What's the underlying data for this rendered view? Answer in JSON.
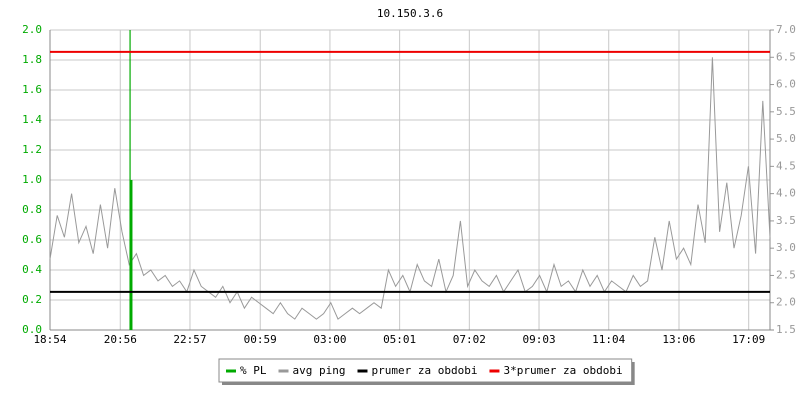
{
  "chart_data": {
    "type": "line",
    "title": "10.150.3.6",
    "xlim": [
      0,
      1250
    ],
    "xticks": [
      {
        "value": 0,
        "label": "18:54"
      },
      {
        "value": 122,
        "label": "20:56"
      },
      {
        "value": 243,
        "label": "22:57"
      },
      {
        "value": 365,
        "label": "00:59"
      },
      {
        "value": 486,
        "label": "03:00"
      },
      {
        "value": 607,
        "label": "05:01"
      },
      {
        "value": 728,
        "label": "07:02"
      },
      {
        "value": 849,
        "label": "09:03"
      },
      {
        "value": 970,
        "label": "11:04"
      },
      {
        "value": 1092,
        "label": "13:06"
      },
      {
        "value": 1213,
        "label": "17:09"
      }
    ],
    "ylim": [
      0,
      2.0
    ],
    "yticks": [
      {
        "value": 0,
        "label": "0.0"
      },
      0.2,
      0.4,
      0.6,
      0.8,
      {
        "value": 1,
        "label": "1.0"
      },
      1.2,
      1.4,
      1.6,
      1.8,
      {
        "value": 2,
        "label": "2.0"
      }
    ],
    "y2lim": [
      1.5,
      7.0
    ],
    "y2ticks": [
      1.5,
      {
        "value": 2,
        "label": "2.0"
      },
      2.5,
      {
        "value": 3,
        "label": "3.0"
      },
      3.5,
      {
        "value": 4,
        "label": "4.0"
      },
      4.5,
      {
        "value": 5,
        "label": "5.0"
      },
      5.5,
      {
        "value": 6,
        "label": "6.0"
      },
      6.5,
      {
        "value": 7,
        "label": "7.0"
      }
    ],
    "grid": true,
    "series": [
      {
        "name": "% PL",
        "type": "bar",
        "color": "#00aa00",
        "x": [
          139,
          141
        ],
        "values": [
          2.0,
          1.0
        ]
      },
      {
        "name": "avg ping",
        "type": "line",
        "color": "#999999",
        "axis": "y2",
        "step": 12.5,
        "values": [
          2.8,
          3.6,
          3.2,
          4.0,
          3.1,
          3.4,
          2.9,
          3.8,
          3.0,
          4.1,
          3.3,
          2.7,
          2.9,
          2.5,
          2.6,
          2.4,
          2.5,
          2.3,
          2.4,
          2.2,
          2.6,
          2.3,
          2.2,
          2.1,
          2.3,
          2.0,
          2.2,
          1.9,
          2.1,
          2.0,
          1.9,
          1.8,
          2.0,
          1.8,
          1.7,
          1.9,
          1.8,
          1.7,
          1.8,
          2.0,
          1.7,
          1.8,
          1.9,
          1.8,
          1.9,
          2.0,
          1.9,
          2.6,
          2.3,
          2.5,
          2.2,
          2.7,
          2.4,
          2.3,
          2.8,
          2.2,
          2.5,
          3.5,
          2.3,
          2.6,
          2.4,
          2.3,
          2.5,
          2.2,
          2.4,
          2.6,
          2.2,
          2.3,
          2.5,
          2.2,
          2.7,
          2.3,
          2.4,
          2.2,
          2.6,
          2.3,
          2.5,
          2.2,
          2.4,
          2.3,
          2.2,
          2.5,
          2.3,
          2.4,
          3.2,
          2.6,
          3.5,
          2.8,
          3.0,
          2.7,
          3.8,
          3.1,
          6.5,
          3.3,
          4.2,
          3.0,
          3.6,
          4.5,
          2.9,
          5.7,
          3.2
        ]
      },
      {
        "name": "prumer za obdobi",
        "type": "hline",
        "color": "#000000",
        "axis": "y2",
        "values": [
          2.2
        ]
      },
      {
        "name": "3*prumer za obdobi",
        "type": "hline",
        "color": "#ee0000",
        "axis": "y2",
        "values": [
          6.6
        ]
      }
    ]
  }
}
